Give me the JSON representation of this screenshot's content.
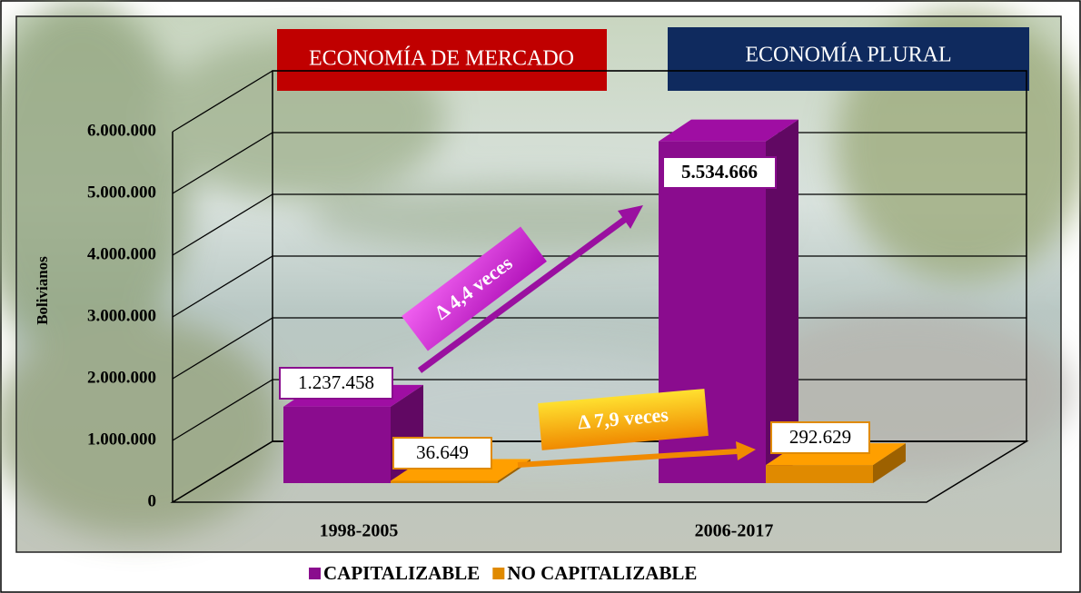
{
  "chart_data": {
    "type": "bar3d",
    "categories": [
      "1998-2005",
      "2006-2017"
    ],
    "series": [
      {
        "name": "CAPITALIZABLE",
        "color": "#8a0c8e",
        "values": [
          1237458,
          5534666
        ],
        "value_labels": [
          "1.237.458",
          "5.534.666"
        ]
      },
      {
        "name": "NO CAPITALIZABLE",
        "color": "#e08a00",
        "values": [
          36649,
          292629
        ],
        "value_labels": [
          "36.649",
          "292.629"
        ]
      }
    ],
    "ylabel": "Bolivianos",
    "ylim": [
      0,
      6000000
    ],
    "yticks": [
      0,
      {
        "value": 1000000,
        "label": "1.000.000"
      },
      {
        "value": 2000000,
        "label": "2.000.000"
      },
      {
        "value": 3000000,
        "label": "3.000.000"
      },
      {
        "value": 4000000,
        "label": "4.000.000"
      },
      {
        "value": 5000000,
        "label": "5.000.000"
      },
      {
        "value": 6000000,
        "label": "6.000.000"
      }
    ],
    "grid": true,
    "legend": "bottom",
    "annotations": [
      "ECONOMÍA DE MERCADO",
      "ECONOMÍA PLURAL",
      "Δ 4,4 veces",
      "Δ 7,9 veces"
    ]
  }
}
